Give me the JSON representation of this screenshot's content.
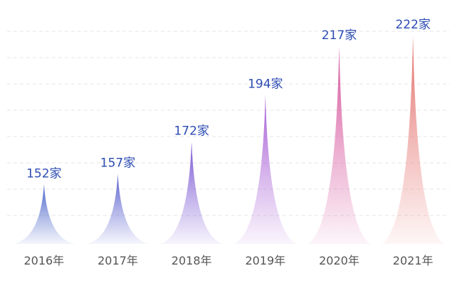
{
  "chart_data": {
    "type": "spike",
    "categories": [
      "2016年",
      "2017年",
      "2018年",
      "2019年",
      "2020年",
      "2021年"
    ],
    "values": [
      152,
      157,
      172,
      194,
      217,
      222
    ],
    "value_labels": [
      "152家",
      "157家",
      "172家",
      "194家",
      "217家",
      "222家"
    ],
    "colors": [
      "#4c66c9",
      "#5a62cf",
      "#7a56d4",
      "#a85fd6",
      "#d6559d",
      "#e4726d"
    ],
    "ylim": [
      124,
      224
    ],
    "grid": true
  }
}
